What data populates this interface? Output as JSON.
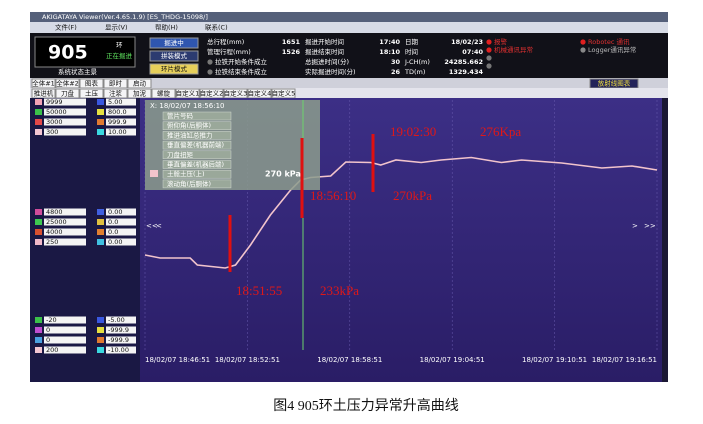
{
  "window": {
    "title": "AKIGATAYA Viewer(Ver.4.65.1.9) [ES_THDG-15098/]"
  },
  "menu": [
    "文件(F)",
    "显示(V)",
    "帮助(H)",
    "联系(C)"
  ],
  "status": {
    "ring": "905",
    "ring_unit": "环",
    "state": "正在掘进",
    "system": "系统状态主景",
    "buttons": [
      "掘进中",
      "拼装模式",
      "环片模式"
    ]
  },
  "info": [
    [
      [
        "总行程(mm)",
        "1651"
      ],
      [
        "掘进开始时间",
        "17:40"
      ],
      [
        "日期",
        "18/02/23"
      ]
    ],
    [
      [
        "管理行程(mm)",
        "1526"
      ],
      [
        "掘进结束时间",
        "18:10"
      ],
      [
        "时间",
        "07:40"
      ]
    ],
    [
      [
        "拉铁开始条件成立"
      ],
      [
        "总掘进时间(分)",
        "30"
      ],
      [
        "J-CH(m)",
        "24285.662"
      ]
    ],
    [
      [
        "拉铁结束条件成立"
      ],
      [
        "实际掘进时间(分)",
        "26"
      ],
      [
        "TD(m)",
        "1329.434"
      ]
    ]
  ],
  "alarms": [
    "报警",
    "机械通讯异常"
  ],
  "comms": [
    "Robotec 通讯",
    "Logger通讯异常"
  ],
  "tabs1": [
    "全体#1",
    "全体#2",
    "图表",
    "即时",
    "启动"
  ],
  "chart_button": "放射线图表",
  "tabs2": [
    "推进机",
    "刀盘",
    "土压",
    "注浆",
    "加泥",
    "螺旋",
    "自定义1",
    "自定义2",
    "自定义3",
    "自定义4",
    "自定义5"
  ],
  "legend_groups": [
    [
      [
        "9999",
        "5.00"
      ],
      [
        "50000",
        "800.0"
      ],
      [
        "3000",
        "999.9"
      ],
      [
        "300",
        "10.00"
      ]
    ],
    [
      [
        "4800",
        "0.00"
      ],
      [
        "25000",
        "0.0"
      ],
      [
        "4000",
        "0.0"
      ],
      [
        "250",
        "0.00"
      ]
    ],
    [
      [
        "-20",
        "-5.00"
      ],
      [
        "0",
        "-999.9"
      ],
      [
        "0",
        "-999.9"
      ],
      [
        "200",
        "-10.00"
      ]
    ]
  ],
  "nav": [
    "<<",
    "<",
    ">",
    ">>"
  ],
  "overlay": {
    "x_label": "X: 18/02/07 18:56:10",
    "items": [
      "管片号码",
      "俯仰角(后胴体)",
      "推进油缸总推力",
      "垂直偏差(机器前端)",
      "刀盘扭矩",
      "垂直偏差(机器后端)",
      "滚动角(后胴体)"
    ],
    "reading": "270 kPa"
  },
  "chart_data": {
    "type": "line",
    "x": [
      "18:46:51",
      "18:47:44",
      "18:49:30",
      "18:49:55",
      "18:51:33",
      "18:52:09",
      "18:53:02",
      "18:54:12",
      "18:55:23",
      "18:55:58",
      "18:56:33",
      "18:57:44",
      "18:58:37",
      "19:00:05",
      "19:00:40",
      "19:01:33",
      "19:03:02",
      "19:04:12",
      "19:05:58",
      "19:07:44",
      "19:08:55",
      "19:11:16",
      "19:13:37",
      "19:15:23",
      "19:16:51"
    ],
    "series": [
      {
        "name": "土舱土压(上)",
        "color": "#f2c4cc",
        "values": [
          238,
          236.8,
          236.8,
          234,
          232.8,
          234,
          242,
          254,
          264,
          268,
          269,
          269.6,
          275.2,
          275,
          274,
          276,
          275,
          276,
          277,
          275,
          276,
          274.8,
          272.8,
          273.6,
          272
        ]
      }
    ],
    "xlim": [
      "18:46:51",
      "19:16:51"
    ],
    "xticks": [
      {
        "value": "18:46:51",
        "label": "18/02/07 18:46:51"
      },
      {
        "value": "18:52:51",
        "label": "18/02/07 18:52:51"
      },
      {
        "value": "18:58:51",
        "label": "18/02/07 18:58:51"
      },
      {
        "value": "19:04:51",
        "label": "18/02/07 19:04:51"
      },
      {
        "value": "19:10:51",
        "label": "18/02/07 19:10:51"
      },
      {
        "value": "19:16:51",
        "label": "18/02/07 19:16:51"
      }
    ],
    "ylim": [
      200,
      300
    ],
    "annotations": [
      [
        "18:51:55",
        "233kPa"
      ],
      [
        "18:56:10",
        "270kPa"
      ],
      [
        "19:02:30",
        "276Kpa"
      ]
    ]
  },
  "caption": "图4 905环土压力异常升高曲线"
}
